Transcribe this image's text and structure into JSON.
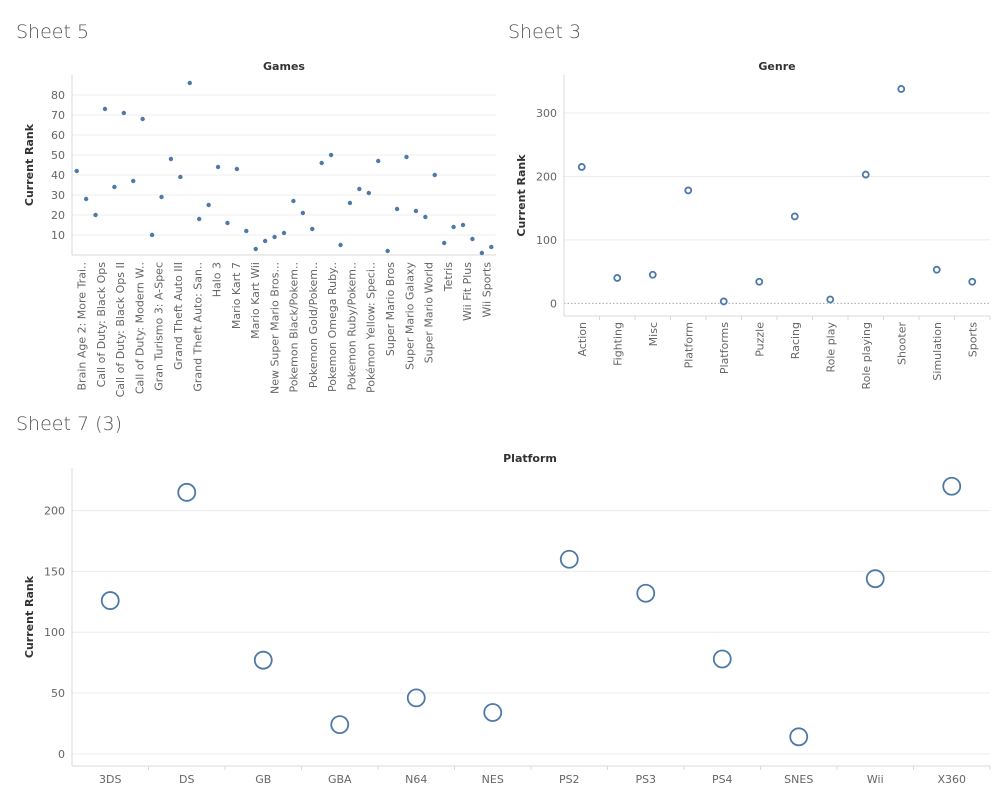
{
  "sheets": {
    "sheet5": "Sheet 5",
    "sheet3": "Sheet 3",
    "sheet7": "Sheet 7 (3)"
  },
  "chart_data": [
    {
      "type": "scatter",
      "header": "Games",
      "ylabel": "Current Rank",
      "ylim": [
        0,
        90
      ],
      "yticks": [
        10,
        20,
        30,
        40,
        50,
        60,
        70,
        80
      ],
      "color": "#4e79a7",
      "labels": [
        "Brain Age 2: More Trai..",
        "Call of Duty: Black Ops",
        "Call of Duty: Black Ops II",
        "Call of Duty: Modern W..",
        "Gran Turismo 3: A-Spec",
        "Grand Theft Auto III",
        "Grand Theft Auto: San..",
        "Halo 3",
        "Mario Kart 7",
        "Mario Kart Wii",
        "New Super Mario Bros...",
        "Pokemon Black/Pokem..",
        "Pokemon Gold/Pokem..",
        "Pokemon Omega Ruby..",
        "Pokemon Ruby/Pokem..",
        "Pokémon Yellow: Speci..",
        "Super Mario Bros",
        "Super Mario Galaxy",
        "Super Mario World",
        "Tetris",
        "Wii Fit Plus",
        "Wii Sports"
      ],
      "values": [
        42,
        28,
        20,
        73,
        34,
        71,
        37,
        68,
        10,
        29,
        48,
        39,
        86,
        18,
        25,
        44,
        16,
        43,
        12,
        3,
        7,
        9,
        11,
        27,
        21,
        13,
        46,
        50,
        5,
        26,
        33,
        31,
        47,
        2,
        23,
        49,
        22,
        19,
        40,
        6,
        14,
        15,
        8,
        1,
        4
      ]
    },
    {
      "type": "scatter",
      "header": "Genre",
      "ylabel": "Current Rank",
      "ylim": [
        -20,
        360
      ],
      "yticks": [
        0,
        100,
        200,
        300
      ],
      "color": "#4e79a7",
      "categories": [
        "Action",
        "Fighting",
        "Misc",
        "Platform",
        "Platforms",
        "Puzzle",
        "Racing",
        "Role play",
        "Role playing",
        "Shooter",
        "Simulation",
        "Sports"
      ],
      "values": [
        215,
        40,
        45,
        178,
        3,
        34,
        137,
        6,
        203,
        338,
        53,
        34
      ]
    },
    {
      "type": "scatter",
      "header": "Platform",
      "ylabel": "Current Rank",
      "ylim": [
        -10,
        235
      ],
      "yticks": [
        0,
        50,
        100,
        150,
        200
      ],
      "color": "#4e79a7",
      "categories": [
        "3DS",
        "DS",
        "GB",
        "GBA",
        "N64",
        "NES",
        "PS2",
        "PS3",
        "PS4",
        "SNES",
        "Wii",
        "X360"
      ],
      "values": [
        126,
        215,
        77,
        24,
        46,
        34,
        160,
        132,
        78,
        14,
        144,
        220
      ]
    }
  ]
}
